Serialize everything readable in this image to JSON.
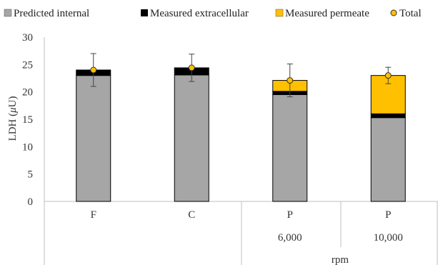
{
  "chart_data": {
    "type": "bar",
    "stacked": true,
    "categories": [
      "F",
      "C",
      "P",
      "P"
    ],
    "category_sublabels": [
      "",
      "",
      "6,000",
      "10,000"
    ],
    "group_label": "rpm",
    "ylabel_prefix": "LDH (",
    "ylabel_mu": "μ",
    "ylabel_suffix": "U)",
    "ylim": [
      0,
      30
    ],
    "yticks": [
      0,
      5,
      10,
      15,
      20,
      25,
      30
    ],
    "grid": false,
    "legend_position": "top",
    "series": [
      {
        "name": "Predicted internal",
        "color": "#a6a6a6",
        "values": [
          23.0,
          23.1,
          19.5,
          15.3
        ]
      },
      {
        "name": "Measured extracellular",
        "color": "#000000",
        "values": [
          1.0,
          1.3,
          0.6,
          0.7
        ]
      },
      {
        "name": "Measured permeate",
        "color": "#ffc000",
        "values": [
          0.0,
          0.0,
          2.0,
          7.0
        ]
      }
    ],
    "total": {
      "name": "Total",
      "color": "#ffc000",
      "values": [
        24.0,
        24.4,
        22.1,
        23.0
      ],
      "error": [
        3.0,
        2.5,
        3.0,
        1.5
      ]
    }
  }
}
